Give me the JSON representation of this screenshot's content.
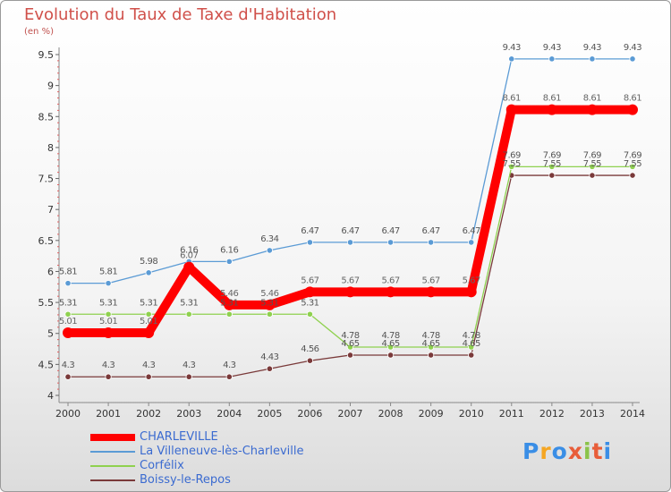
{
  "title": "Evolution du Taux de Taxe d'Habitation",
  "subtitle": "(en %)",
  "logo": {
    "letters": [
      "P",
      "r",
      "o",
      "x",
      "i",
      "t",
      "i"
    ],
    "colors": [
      "#3a8ee6",
      "#f5a623",
      "#3a8ee6",
      "#e85d3a",
      "#8bc34a",
      "#e85d3a",
      "#3a8ee6"
    ]
  },
  "chart_data": {
    "type": "line",
    "categories": [
      "2000",
      "2001",
      "2002",
      "2003",
      "2004",
      "2005",
      "2006",
      "2007",
      "2008",
      "2009",
      "2010",
      "2011",
      "2012",
      "2013",
      "2014"
    ],
    "y_ticks": [
      "4",
      "4.5",
      "5",
      "5.5",
      "6",
      "6.5",
      "7",
      "7.5",
      "8",
      "8.5",
      "9",
      "9.5"
    ],
    "ylim": [
      4,
      9.5
    ],
    "grid": false,
    "legend_position": "bottom-left",
    "series": [
      {
        "name": "CHARLEVILLE",
        "color": "#ff0000",
        "values": [
          5.01,
          5.01,
          5.01,
          6.07,
          5.46,
          5.46,
          5.67,
          5.67,
          5.67,
          5.67,
          5.67,
          8.61,
          8.61,
          8.61,
          8.61
        ],
        "labels": [
          "5.01",
          "5.01",
          "5.01",
          "6.07",
          "5.46",
          "5.46",
          "5.67",
          "5.67",
          "5.67",
          "5.67",
          "5.67",
          "8.61",
          "8.61",
          "8.61",
          "8.61"
        ]
      },
      {
        "name": "La Villeneuve-lès-Charleville",
        "color": "#5b9bd5",
        "values": [
          5.81,
          5.81,
          5.98,
          6.16,
          6.16,
          6.34,
          6.47,
          6.47,
          6.47,
          6.47,
          6.47,
          9.43,
          9.43,
          9.43,
          9.43
        ],
        "labels": [
          "5.81",
          "5.81",
          "5.98",
          "6.16",
          "6.16",
          "6.34",
          "6.47",
          "6.47",
          "6.47",
          "6.47",
          "6.47",
          "9.43",
          "9.43",
          "9.43",
          "9.43"
        ]
      },
      {
        "name": "Corfélix",
        "color": "#8fd14f",
        "values": [
          5.31,
          5.31,
          5.31,
          5.31,
          5.31,
          5.31,
          5.31,
          4.78,
          4.78,
          4.78,
          4.78,
          7.69,
          7.69,
          7.69,
          7.69
        ],
        "labels": [
          "5.31",
          "5.31",
          "5.31",
          "5.31",
          "5.31",
          "5.31",
          "5.31",
          "4.78",
          "4.78",
          "4.78",
          "4.78",
          "7.69",
          "7.69",
          "7.69",
          "7.69"
        ]
      },
      {
        "name": "Boissy-le-Repos",
        "color": "#7a3a3a",
        "values": [
          4.3,
          4.3,
          4.3,
          4.3,
          4.3,
          4.43,
          4.56,
          4.65,
          4.65,
          4.65,
          4.65,
          7.55,
          7.55,
          7.55,
          7.55
        ],
        "labels": [
          "4.3",
          "4.3",
          "4.3",
          "4.3",
          "4.3",
          "4.43",
          "4.56",
          "4.65",
          "4.65",
          "4.65",
          "4.65",
          "7.55",
          "7.55",
          "7.55",
          "7.55"
        ]
      }
    ]
  }
}
